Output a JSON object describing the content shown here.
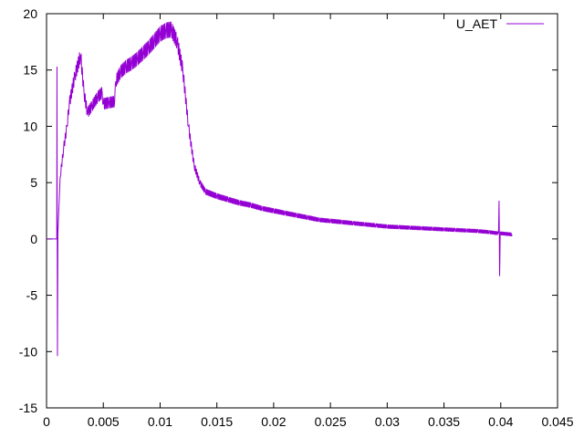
{
  "chart_data": {
    "type": "line",
    "title": "",
    "xlabel": "",
    "ylabel": "",
    "xlim": [
      0,
      0.045
    ],
    "ylim": [
      -15,
      20
    ],
    "xticks": [
      0,
      0.005,
      0.01,
      0.015,
      0.02,
      0.025,
      0.03,
      0.035,
      0.04,
      0.045
    ],
    "xtick_labels": [
      "0",
      "0.005",
      "0.01",
      "0.015",
      "0.02",
      "0.025",
      "0.03",
      "0.035",
      "0.04",
      "0.045"
    ],
    "yticks": [
      -15,
      -10,
      -5,
      0,
      5,
      10,
      15,
      20
    ],
    "ytick_labels": [
      "-15",
      "-10",
      "-5",
      "0",
      "5",
      "10",
      "15",
      "20"
    ],
    "grid": false,
    "legend_position": "top-right",
    "series": [
      {
        "name": "U_AET",
        "color": "#9400d3",
        "points": [
          [
            0.0,
            0.0
          ],
          [
            0.0009,
            0.0
          ],
          [
            0.00092,
            15.3
          ],
          [
            0.00094,
            0.0
          ],
          [
            0.00096,
            -10.4
          ],
          [
            0.001,
            0.5
          ],
          [
            0.0012,
            5.5
          ],
          [
            0.0015,
            8.0
          ],
          [
            0.0018,
            10.0
          ],
          [
            0.002,
            12.0
          ],
          [
            0.0025,
            14.5
          ],
          [
            0.003,
            16.3
          ],
          [
            0.0033,
            13.0
          ],
          [
            0.0036,
            11.2
          ],
          [
            0.004,
            11.8
          ],
          [
            0.0045,
            12.6
          ],
          [
            0.0049,
            13.0
          ],
          [
            0.005,
            12.0
          ],
          [
            0.0055,
            12.1
          ],
          [
            0.006,
            12.2
          ],
          [
            0.0061,
            14.0
          ],
          [
            0.0065,
            14.8
          ],
          [
            0.007,
            15.3
          ],
          [
            0.0075,
            15.6
          ],
          [
            0.008,
            16.0
          ],
          [
            0.0085,
            16.5
          ],
          [
            0.009,
            17.0
          ],
          [
            0.0095,
            17.6
          ],
          [
            0.01,
            18.2
          ],
          [
            0.0105,
            18.5
          ],
          [
            0.011,
            18.6
          ],
          [
            0.0115,
            17.5
          ],
          [
            0.012,
            15.0
          ],
          [
            0.0125,
            10.0
          ],
          [
            0.013,
            6.5
          ],
          [
            0.0135,
            5.0
          ],
          [
            0.014,
            4.2
          ],
          [
            0.015,
            3.8
          ],
          [
            0.016,
            3.5
          ],
          [
            0.017,
            3.2
          ],
          [
            0.018,
            3.0
          ],
          [
            0.019,
            2.7
          ],
          [
            0.02,
            2.5
          ],
          [
            0.021,
            2.3
          ],
          [
            0.022,
            2.1
          ],
          [
            0.023,
            1.9
          ],
          [
            0.024,
            1.7
          ],
          [
            0.025,
            1.6
          ],
          [
            0.026,
            1.5
          ],
          [
            0.027,
            1.4
          ],
          [
            0.028,
            1.3
          ],
          [
            0.029,
            1.2
          ],
          [
            0.03,
            1.1
          ],
          [
            0.031,
            1.05
          ],
          [
            0.032,
            1.0
          ],
          [
            0.033,
            0.95
          ],
          [
            0.034,
            0.9
          ],
          [
            0.035,
            0.85
          ],
          [
            0.036,
            0.8
          ],
          [
            0.037,
            0.75
          ],
          [
            0.038,
            0.7
          ],
          [
            0.039,
            0.6
          ],
          [
            0.0398,
            0.5
          ],
          [
            0.03985,
            3.4
          ],
          [
            0.0399,
            -3.3
          ],
          [
            0.03995,
            0.5
          ],
          [
            0.041,
            0.4
          ]
        ]
      }
    ]
  }
}
